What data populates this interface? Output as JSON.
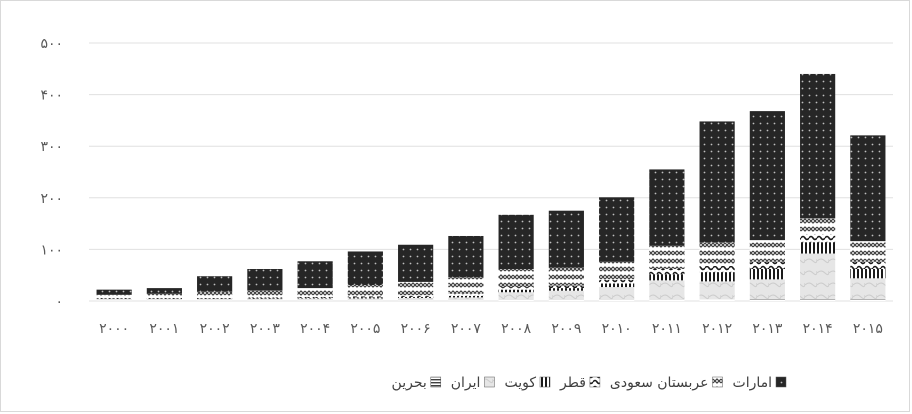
{
  "chart_data": {
    "type": "bar",
    "stacked": true,
    "title": "",
    "xlabel": "",
    "ylabel": "",
    "ylim": [
      0,
      500
    ],
    "y_ticks": [
      "۰",
      "۱۰۰",
      "۲۰۰",
      "۳۰۰",
      "۴۰۰",
      "۵۰۰"
    ],
    "grid": true,
    "legend_position": "bottom",
    "categories": [
      "۲۰۰۰",
      "۲۰۰۱",
      "۲۰۰۲",
      "۲۰۰۳",
      "۲۰۰۴",
      "۲۰۰۵",
      "۲۰۰۶",
      "۲۰۰۷",
      "۲۰۰۸",
      "۲۰۰۹",
      "۲۰۱۰",
      "۲۰۱۱",
      "۲۰۱۲",
      "۲۰۱۳",
      "۲۰۱۴",
      "۲۰۱۵"
    ],
    "series": [
      {
        "name": "بحرین",
        "color": "#595959",
        "values": [
          1,
          1,
          1,
          1,
          1,
          1,
          1,
          1,
          2,
          2,
          2,
          2,
          3,
          4,
          4,
          4
        ]
      },
      {
        "name": "ایران",
        "color": "#d9d9d9",
        "values": [
          3,
          3,
          3,
          3,
          4,
          4,
          5,
          6,
          15,
          18,
          25,
          38,
          35,
          38,
          88,
          40
        ]
      },
      {
        "name": "کویت",
        "color": "#1a1a1a",
        "values": [
          1,
          1,
          1,
          1,
          1,
          2,
          2,
          3,
          5,
          5,
          7,
          12,
          18,
          20,
          22,
          18
        ]
      },
      {
        "name": "قطر",
        "color": "#3a3a3a",
        "values": [
          1,
          1,
          1,
          2,
          2,
          2,
          3,
          4,
          5,
          5,
          7,
          10,
          12,
          14,
          16,
          14
        ]
      },
      {
        "name": "عربستان سعودی",
        "color": "#8c8c8c",
        "values": [
          6,
          8,
          12,
          13,
          17,
          22,
          26,
          32,
          35,
          35,
          35,
          45,
          45,
          42,
          30,
          40
        ]
      },
      {
        "name": "امارات",
        "color": "#262626",
        "values": [
          10,
          11,
          30,
          42,
          52,
          65,
          72,
          80,
          105,
          110,
          125,
          148,
          235,
          250,
          280,
          205
        ]
      }
    ]
  }
}
